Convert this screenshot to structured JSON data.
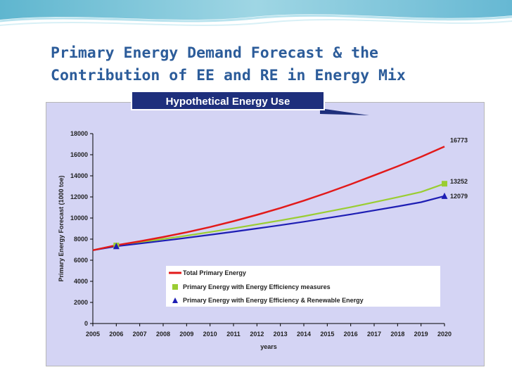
{
  "slide": {
    "title_line1": "Primary Energy Demand Forecast & the",
    "title_line2": "Contribution of EE and RE in Energy Mix",
    "callout": "Hypothetical Energy Use"
  },
  "colors": {
    "title": "#2c5c9a",
    "total": "#e21a1a",
    "ee": "#9acd32",
    "ee_re": "#1e1eb4",
    "plot_bg": "#d4d4f4",
    "callout_bg": "#1e2f7c"
  },
  "chart_data": {
    "type": "line",
    "title": "",
    "xlabel": "years",
    "ylabel": "Primary Energy Forecast (1000 toe)",
    "xlim": [
      2005,
      2020
    ],
    "ylim": [
      0,
      18000
    ],
    "x_ticks": [
      "2005",
      "2006",
      "2007",
      "2008",
      "2009",
      "2010",
      "2011",
      "2012",
      "2013",
      "2014",
      "2015",
      "2016",
      "2017",
      "2018",
      "2019",
      "2020"
    ],
    "y_ticks": [
      "0",
      "2000",
      "4000",
      "6000",
      "8000",
      "10000",
      "12000",
      "14000",
      "16000",
      "18000"
    ],
    "grid": false,
    "legend_position": "bottom-center",
    "series": [
      {
        "name": "Total Primary Energy",
        "key": "total",
        "marker": "line",
        "x": [
          2005,
          2006,
          2007,
          2008,
          2009,
          2010,
          2011,
          2012,
          2013,
          2014,
          2015,
          2016,
          2017,
          2018,
          2019,
          2020
        ],
        "values": [
          6950,
          7420,
          7790,
          8200,
          8650,
          9150,
          9700,
          10300,
          10950,
          11650,
          12400,
          13200,
          14050,
          14900,
          15800,
          16773
        ],
        "end_label": "16773",
        "markers_at": []
      },
      {
        "name": "Primary Energy with Energy Efficiency measures",
        "key": "ee",
        "marker": "square",
        "x": [
          2005,
          2006,
          2007,
          2008,
          2009,
          2010,
          2011,
          2012,
          2013,
          2014,
          2015,
          2016,
          2017,
          2018,
          2019,
          2020
        ],
        "values": [
          6950,
          7400,
          7700,
          8010,
          8330,
          8670,
          9020,
          9390,
          9770,
          10170,
          10590,
          11030,
          11490,
          11970,
          12470,
          13252
        ],
        "end_label": "13252",
        "markers_at": [
          2006,
          2020
        ]
      },
      {
        "name": "Primary Energy with Energy Efficiency & Renewable Energy",
        "key": "ee_re",
        "marker": "triangle",
        "x": [
          2005,
          2006,
          2007,
          2008,
          2009,
          2010,
          2011,
          2012,
          2013,
          2014,
          2015,
          2016,
          2017,
          2018,
          2019,
          2020
        ],
        "values": [
          6950,
          7320,
          7580,
          7850,
          8120,
          8410,
          8700,
          9010,
          9320,
          9650,
          9990,
          10350,
          10720,
          11100,
          11500,
          12079
        ],
        "end_label": "12079",
        "markers_at": [
          2006,
          2020
        ]
      }
    ]
  }
}
